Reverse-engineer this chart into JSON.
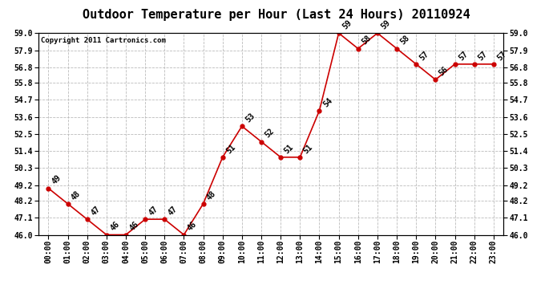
{
  "title": "Outdoor Temperature per Hour (Last 24 Hours) 20110924",
  "copyright_text": "Copyright 2011 Cartronics.com",
  "hours": [
    "00:00",
    "01:00",
    "02:00",
    "03:00",
    "04:00",
    "05:00",
    "06:00",
    "07:00",
    "08:00",
    "09:00",
    "10:00",
    "11:00",
    "12:00",
    "13:00",
    "14:00",
    "15:00",
    "16:00",
    "17:00",
    "18:00",
    "19:00",
    "20:00",
    "21:00",
    "22:00",
    "23:00"
  ],
  "temps": [
    49,
    48,
    47,
    46,
    46,
    47,
    47,
    46,
    48,
    51,
    53,
    52,
    51,
    51,
    54,
    59,
    58,
    59,
    58,
    57,
    56,
    57,
    57,
    57
  ],
  "ylim_min": 46.0,
  "ylim_max": 59.0,
  "line_color": "#cc0000",
  "marker_color": "#cc0000",
  "bg_color": "#ffffff",
  "grid_color": "#bbbbbb",
  "title_fontsize": 11,
  "tick_fontsize": 7,
  "annot_fontsize": 7,
  "copyright_fontsize": 6.5,
  "yticks": [
    46.0,
    47.1,
    48.2,
    49.2,
    50.3,
    51.4,
    52.5,
    53.6,
    54.7,
    55.8,
    56.8,
    57.9,
    59.0
  ]
}
